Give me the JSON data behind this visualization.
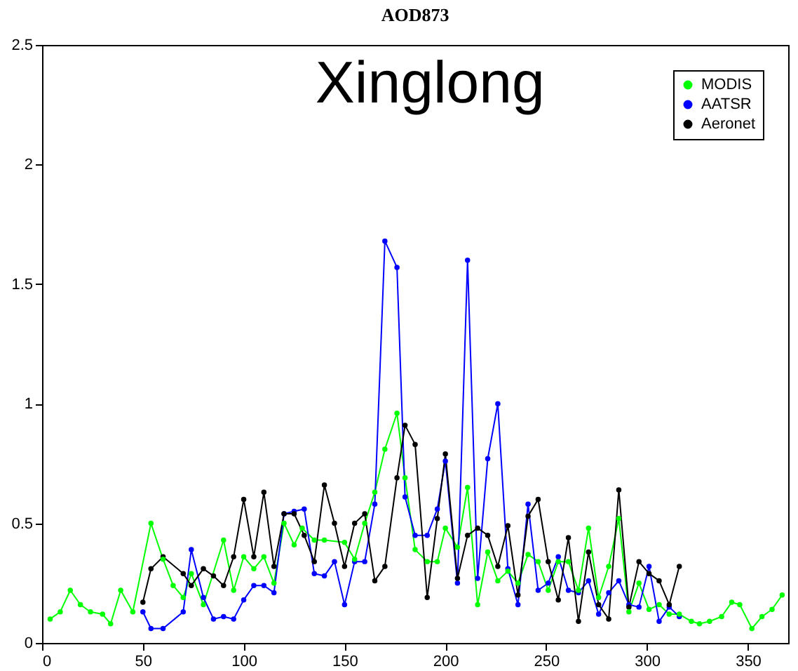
{
  "chart_data": {
    "type": "line",
    "title": "AOD873",
    "annotations": [
      "Xinglong"
    ],
    "marker": "circle",
    "legend": "top right",
    "xlim": [
      0,
      370
    ],
    "xticks": [
      0,
      50,
      100,
      150,
      200,
      250,
      300,
      350
    ],
    "ylim": [
      0,
      2.5
    ],
    "yticks": [
      0,
      0.5,
      1,
      1.5,
      2,
      2.5
    ],
    "series": [
      {
        "name": "MODIS",
        "color": "#00ff00",
        "x": [
          4,
          9,
          14,
          19,
          24,
          30,
          34,
          39,
          45,
          54,
          60,
          65,
          70,
          74,
          80,
          90,
          95,
          100,
          105,
          110,
          115,
          120,
          125,
          129,
          135,
          140,
          150,
          155,
          160,
          165,
          170,
          176,
          180,
          185,
          191,
          196,
          200,
          206,
          211,
          216,
          221,
          226,
          231,
          236,
          241,
          246,
          251,
          256,
          261,
          266,
          271,
          276,
          281,
          286,
          291,
          296,
          301,
          306,
          311,
          316,
          322,
          326,
          331,
          337,
          342,
          346,
          352,
          357,
          362,
          367
        ],
        "values": [
          0.1,
          0.13,
          0.22,
          0.16,
          0.13,
          0.12,
          0.08,
          0.22,
          0.13,
          0.5,
          0.35,
          0.24,
          0.19,
          0.29,
          0.16,
          0.43,
          0.22,
          0.36,
          0.31,
          0.36,
          0.25,
          0.5,
          0.41,
          0.48,
          0.43,
          0.43,
          0.42,
          0.35,
          0.5,
          0.63,
          0.81,
          0.96,
          0.69,
          0.39,
          0.34,
          0.34,
          0.48,
          0.4,
          0.65,
          0.16,
          0.38,
          0.26,
          0.3,
          0.25,
          0.37,
          0.34,
          0.22,
          0.34,
          0.34,
          0.22,
          0.48,
          0.19,
          0.32,
          0.52,
          0.13,
          0.25,
          0.14,
          0.16,
          0.12,
          0.12,
          0.09,
          0.08,
          0.09,
          0.11,
          0.17,
          0.16,
          0.06,
          0.11,
          0.14,
          0.2
        ]
      },
      {
        "name": "AATSR",
        "color": "#0000ff",
        "x": [
          50,
          54,
          60,
          70,
          74,
          80,
          85,
          90,
          95,
          100,
          105,
          110,
          115,
          120,
          125,
          130,
          135,
          140,
          145,
          150,
          155,
          160,
          165,
          170,
          176,
          180,
          185,
          191,
          196,
          200,
          206,
          211,
          216,
          221,
          226,
          231,
          236,
          241,
          246,
          251,
          256,
          261,
          266,
          271,
          276,
          281,
          286,
          291,
          296,
          301,
          306,
          311,
          316
        ],
        "values": [
          0.13,
          0.06,
          0.06,
          0.13,
          0.39,
          0.19,
          0.1,
          0.11,
          0.1,
          0.18,
          0.24,
          0.24,
          0.21,
          0.54,
          0.55,
          0.56,
          0.29,
          0.28,
          0.34,
          0.16,
          0.34,
          0.34,
          0.58,
          1.68,
          1.57,
          0.61,
          0.45,
          0.45,
          0.56,
          0.76,
          0.25,
          1.6,
          0.27,
          0.77,
          1.0,
          0.31,
          0.16,
          0.58,
          0.22,
          0.25,
          0.36,
          0.22,
          0.21,
          0.26,
          0.12,
          0.21,
          0.26,
          0.16,
          0.15,
          0.32,
          0.09,
          0.15,
          0.11
        ]
      },
      {
        "name": "Aeronet",
        "color": "#000000",
        "x": [
          50,
          54,
          60,
          70,
          74,
          80,
          85,
          90,
          95,
          100,
          105,
          110,
          115,
          120,
          125,
          130,
          135,
          140,
          145,
          150,
          155,
          160,
          165,
          170,
          176,
          180,
          185,
          191,
          196,
          200,
          206,
          211,
          216,
          221,
          226,
          231,
          236,
          241,
          246,
          251,
          256,
          261,
          266,
          271,
          276,
          281,
          286,
          291,
          296,
          301,
          306,
          311,
          316
        ],
        "values": [
          0.17,
          0.31,
          0.36,
          0.29,
          0.24,
          0.31,
          0.28,
          0.24,
          0.36,
          0.6,
          0.36,
          0.63,
          0.32,
          0.54,
          0.54,
          0.45,
          0.34,
          0.66,
          0.5,
          0.32,
          0.5,
          0.54,
          0.26,
          0.32,
          0.69,
          0.91,
          0.83,
          0.19,
          0.52,
          0.79,
          0.27,
          0.45,
          0.48,
          0.45,
          0.32,
          0.49,
          0.2,
          0.53,
          0.6,
          0.34,
          0.18,
          0.44,
          0.09,
          0.38,
          0.16,
          0.1,
          0.64,
          0.15,
          0.34,
          0.29,
          0.26,
          0.16,
          0.32
        ]
      }
    ]
  }
}
